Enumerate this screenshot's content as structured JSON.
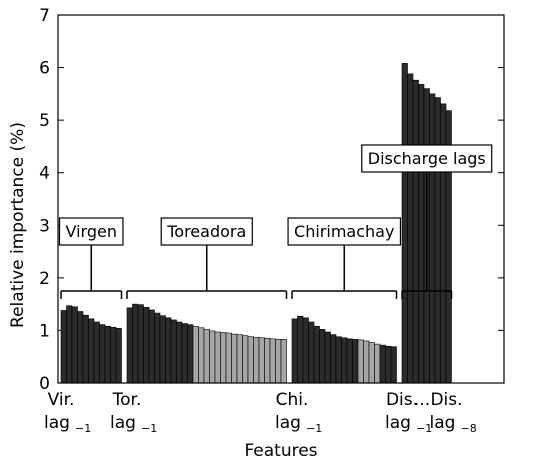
{
  "chart_data": {
    "type": "bar",
    "xlabel": "Features",
    "ylabel": "Relative importance (%)",
    "ylim": [
      0,
      7
    ],
    "yticks": [
      0,
      1,
      2,
      3,
      4,
      5,
      6,
      7
    ],
    "grid": false,
    "colors": {
      "dark": "#2b2b2b",
      "light": "#a6a6a6",
      "edge": "#000000",
      "label_box": "#ffffff"
    },
    "groups": [
      {
        "name": "Virgen",
        "values": [
          1.38,
          1.47,
          1.45,
          1.36,
          1.29,
          1.22,
          1.16,
          1.11,
          1.08,
          1.06,
          1.04
        ],
        "shades": [
          "dark",
          "dark",
          "dark",
          "dark",
          "dark",
          "dark",
          "dark",
          "dark",
          "dark",
          "dark",
          "dark"
        ]
      },
      {
        "name": "Toreadora",
        "values": [
          1.43,
          1.5,
          1.49,
          1.44,
          1.39,
          1.33,
          1.28,
          1.24,
          1.2,
          1.16,
          1.13,
          1.11,
          1.08,
          1.05,
          1.02,
          0.99,
          0.97,
          0.96,
          0.95,
          0.93,
          0.92,
          0.9,
          0.88,
          0.87,
          0.86,
          0.85,
          0.84,
          0.83,
          0.83
        ],
        "shades": [
          "dark",
          "dark",
          "dark",
          "dark",
          "dark",
          "dark",
          "dark",
          "dark",
          "dark",
          "dark",
          "dark",
          "dark",
          "light",
          "light",
          "light",
          "light",
          "light",
          "light",
          "light",
          "light",
          "light",
          "light",
          "light",
          "light",
          "light",
          "light",
          "light",
          "light",
          "light"
        ]
      },
      {
        "name": "Chirimachay",
        "values": [
          1.22,
          1.27,
          1.24,
          1.16,
          1.08,
          1.02,
          0.97,
          0.92,
          0.88,
          0.86,
          0.84,
          0.83,
          0.82,
          0.8,
          0.77,
          0.74,
          0.72,
          0.7,
          0.69
        ],
        "shades": [
          "dark",
          "dark",
          "dark",
          "dark",
          "dark",
          "dark",
          "dark",
          "dark",
          "dark",
          "dark",
          "dark",
          "dark",
          "light",
          "light",
          "light",
          "light",
          "dark",
          "dark",
          "dark"
        ]
      },
      {
        "name": "Discharge lags",
        "values": [
          6.08,
          5.88,
          5.76,
          5.68,
          5.6,
          5.5,
          5.43,
          5.31,
          5.18
        ],
        "shades": [
          "dark",
          "dark",
          "dark",
          "dark",
          "dark",
          "dark",
          "dark",
          "dark",
          "dark"
        ]
      }
    ],
    "category_labels": [
      {
        "text": "Vir.",
        "sub": "lag",
        "subscript": "−1"
      },
      {
        "text": "Tor.",
        "sub": "lag",
        "subscript": "−1"
      },
      {
        "text": "Chi.",
        "sub": "lag",
        "subscript": "−1"
      },
      {
        "text": "Dis.",
        "sub": "lag",
        "subscript": "−1"
      },
      {
        "text": "...",
        "sub": "",
        "subscript": ""
      },
      {
        "text": "Dis.",
        "sub": "lag",
        "subscript": "−8"
      }
    ]
  }
}
